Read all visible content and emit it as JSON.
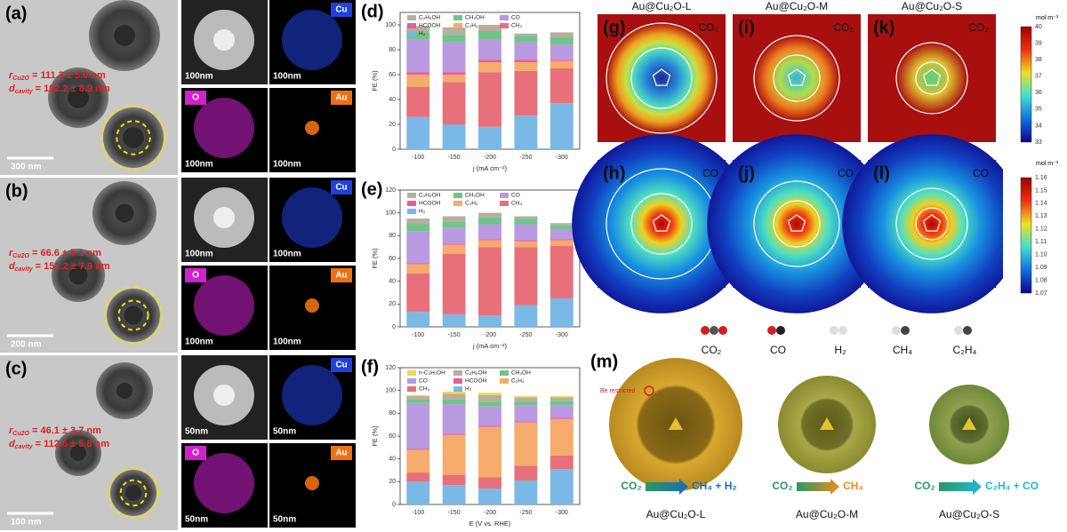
{
  "tem": [
    {
      "label": "(a)",
      "r": "r",
      "r_sub": "Cu2O",
      "r_value": " = 111.3 ± 5.0 nm",
      "d": "d",
      "d_sub": "cavity",
      "d_value": " = 192.2 ± 8.9 nm",
      "scale": "300 nm",
      "eds_scale": [
        "100nm",
        "100nm",
        "100nm",
        "100nm"
      ]
    },
    {
      "label": "(b)",
      "r": "r",
      "r_sub": "Cu2O",
      "r_value": " = 66.6 ± 5.1 nm",
      "d": "d",
      "d_sub": "cavity",
      "d_value": " = 151.2 ± 7.9 nm",
      "scale": "200 nm",
      "eds_scale": [
        "100nm",
        "100nm",
        "100nm",
        "100nm"
      ]
    },
    {
      "label": "(c)",
      "r": "r",
      "r_sub": "Cu2O",
      "r_value": " = 46.1 ± 3.7 nm",
      "d": "d",
      "d_sub": "cavity",
      "d_value": " = 112.6 ± 5.8 nm",
      "scale": "100 nm",
      "eds_scale": [
        "50nm",
        "50nm",
        "50nm",
        "50nm"
      ]
    }
  ],
  "eds_elements": [
    "Cu",
    "O",
    "Au"
  ],
  "chart_data": [
    {
      "type": "bar",
      "stacked": true,
      "panel_label": "(d)",
      "y_label": "FE (%)",
      "x_label": "j (mA cm⁻²)",
      "categories": [
        "-100",
        "-150",
        "-200",
        "-250",
        "-300"
      ],
      "ylim": [
        0,
        110
      ],
      "yticks": [
        0,
        20,
        40,
        60,
        80,
        100
      ],
      "series": [
        {
          "name": "H₂",
          "color": "#7ab8e6",
          "values": [
            26,
            20,
            18,
            27,
            37
          ]
        },
        {
          "name": "CH₄",
          "color": "#e8707a",
          "values": [
            24,
            34,
            44,
            36,
            28
          ]
        },
        {
          "name": "C₂H₄",
          "color": "#f5ac6c",
          "values": [
            10,
            6,
            8,
            7,
            6
          ]
        },
        {
          "name": "HCOOH",
          "color": "#e85ca0",
          "values": [
            2,
            2,
            2,
            2,
            1
          ]
        },
        {
          "name": "CO",
          "color": "#b99ae0",
          "values": [
            26,
            24,
            16,
            14,
            12
          ]
        },
        {
          "name": "CH₃OH",
          "color": "#6fc48a",
          "values": [
            6,
            6,
            7,
            5,
            6
          ]
        },
        {
          "name": "C₂H₅OH",
          "color": "#b8ae9e",
          "values": [
            5,
            6,
            5,
            2,
            4
          ]
        }
      ]
    },
    {
      "type": "bar",
      "stacked": true,
      "panel_label": "(e)",
      "y_label": "FE (%)",
      "x_label": "j (mA cm⁻²)",
      "categories": [
        "-100",
        "-150",
        "-200",
        "-250",
        "-300"
      ],
      "ylim": [
        0,
        120
      ],
      "yticks": [
        0,
        20,
        40,
        60,
        80,
        100,
        120
      ],
      "series": [
        {
          "name": "H₂",
          "color": "#7ab8e6",
          "values": [
            13,
            11,
            10,
            19,
            25
          ]
        },
        {
          "name": "CH₄",
          "color": "#e8707a",
          "values": [
            34,
            53,
            60,
            51,
            46
          ]
        },
        {
          "name": "C₂H₄",
          "color": "#f5ac6c",
          "values": [
            8,
            8,
            6,
            5,
            5
          ]
        },
        {
          "name": "HCOOH",
          "color": "#e85ca0",
          "values": [
            1,
            1,
            1,
            1,
            1
          ]
        },
        {
          "name": "CO",
          "color": "#b99ae0",
          "values": [
            28,
            14,
            13,
            14,
            8
          ]
        },
        {
          "name": "CH₃OH",
          "color": "#6fc48a",
          "values": [
            6,
            5,
            6,
            5,
            4
          ]
        },
        {
          "name": "C₂H₅OH",
          "color": "#b8ae9e",
          "values": [
            5,
            5,
            4,
            2,
            2
          ]
        }
      ]
    },
    {
      "type": "bar",
      "stacked": true,
      "panel_label": "(f)",
      "y_label": "FE (%)",
      "x_label": "E (V vs. RHE)",
      "categories": [
        "-100",
        "-150",
        "-200",
        "-250",
        "-300"
      ],
      "ylim": [
        0,
        120
      ],
      "yticks": [
        0,
        20,
        40,
        60,
        80,
        100,
        120
      ],
      "series": [
        {
          "name": "H₂",
          "color": "#7ab8e6",
          "values": [
            20,
            17,
            14,
            21,
            31
          ]
        },
        {
          "name": "CH₄",
          "color": "#e8707a",
          "values": [
            8,
            9,
            10,
            13,
            12
          ]
        },
        {
          "name": "C₂H₄",
          "color": "#f5ac6c",
          "values": [
            20,
            35,
            44,
            38,
            32
          ]
        },
        {
          "name": "HCOOH",
          "color": "#e85ca0",
          "values": [
            1,
            1,
            1,
            1,
            1
          ]
        },
        {
          "name": "CO",
          "color": "#b99ae0",
          "values": [
            40,
            26,
            17,
            14,
            11
          ]
        },
        {
          "name": "CH₃OH",
          "color": "#6fc48a",
          "values": [
            3,
            4,
            4,
            3,
            4
          ]
        },
        {
          "name": "C₂H₅OH",
          "color": "#b8ae9e",
          "values": [
            3,
            5,
            6,
            4,
            3
          ]
        },
        {
          "name": "n-C₃H₇OH",
          "color": "#f0d84c",
          "values": [
            1,
            2,
            2,
            1,
            1
          ]
        }
      ]
    }
  ],
  "maps": {
    "titles": [
      "Au@Cu₂O-L",
      "Au@Cu₂O-M",
      "Au@Cu₂O-S"
    ],
    "top_labels": [
      "(g)",
      "(i)",
      "(k)"
    ],
    "bottom_labels": [
      "(h)",
      "(j)",
      "(l)"
    ],
    "top_species": "CO₂",
    "bottom_species": "CO",
    "unit": "mol m⁻³",
    "top_ticks": [
      "40",
      "39",
      "38",
      "37",
      "36",
      "35",
      "34",
      "33"
    ],
    "bottom_ticks": [
      "1.16",
      "1.15",
      "1.14",
      "1.13",
      "1.12",
      "1.11",
      "1.10",
      "1.09",
      "1.08",
      "1.07"
    ]
  },
  "scheme": {
    "label": "(m)",
    "molecules": [
      "CO₂",
      "CO",
      "H₂",
      "CH₄",
      "C₂H₄"
    ],
    "note": "Be restricted",
    "reactions": [
      {
        "from": "CO₂",
        "to": "CH₄ + H₂",
        "name": "Au@Cu₂O-L"
      },
      {
        "from": "CO₂",
        "to": "CH₄",
        "name": "Au@Cu₂O-M"
      },
      {
        "from": "CO₂",
        "to": "C₂H₄ + CO",
        "name": "Au@Cu₂O-S"
      }
    ]
  }
}
